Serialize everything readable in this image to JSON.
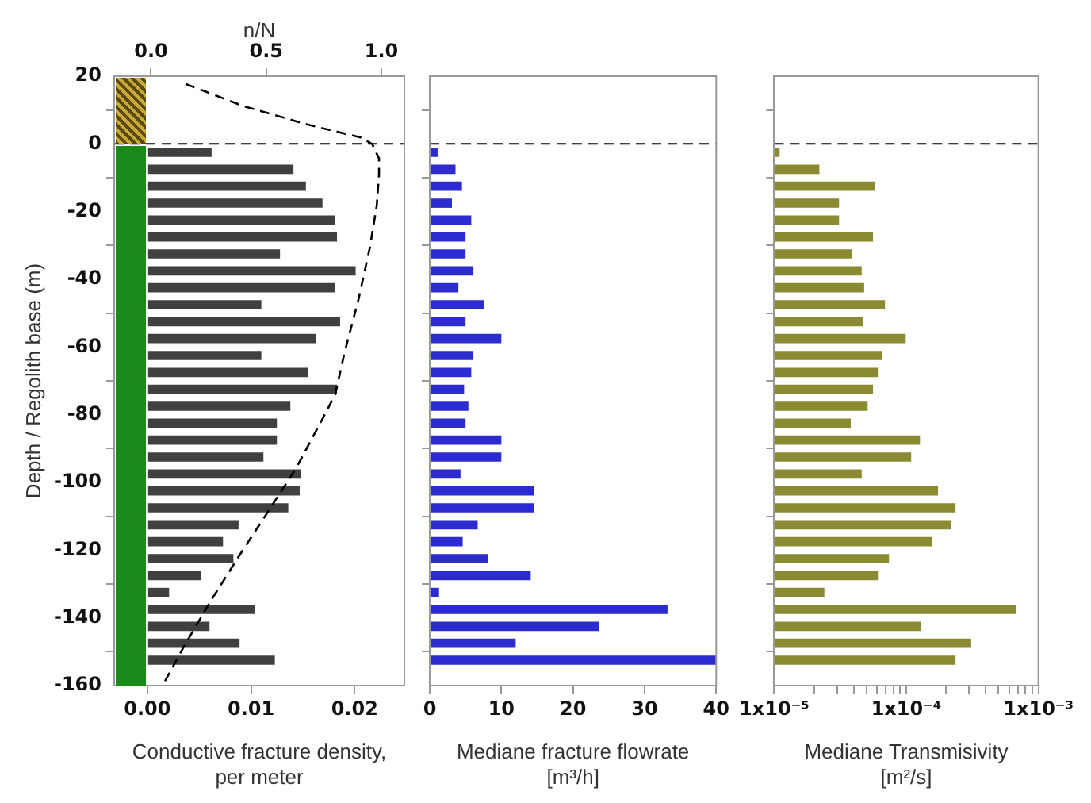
{
  "chart_data": [
    {
      "type": "bar",
      "orientation": "horizontal",
      "ylabel": "Depth / Regolith base (m)",
      "xlabel": "Conductive fracture density,\nper meter",
      "x2label": "n/N",
      "x": [
        -2.5,
        -7.5,
        -12.5,
        -17.5,
        -22.5,
        -27.5,
        -32.5,
        -37.5,
        -42.5,
        -47.5,
        -52.5,
        -57.5,
        -62.5,
        -67.5,
        -72.5,
        -77.5,
        -82.5,
        -87.5,
        -92.5,
        -97.5,
        -102.5,
        -107.5,
        -112.5,
        -117.5,
        -122.5,
        -127.5,
        -132.5,
        -137.5,
        -142.5,
        -147.5,
        -152.5
      ],
      "series": [
        {
          "color": "#404040",
          "values": [
            0.0062,
            0.0141,
            0.0153,
            0.0169,
            0.0181,
            0.0183,
            0.0128,
            0.0201,
            0.0181,
            0.011,
            0.0186,
            0.0163,
            0.011,
            0.0155,
            0.0183,
            0.0138,
            0.0125,
            0.0125,
            0.0112,
            0.0148,
            0.0147,
            0.0136,
            0.0088,
            0.0073,
            0.0083,
            0.0052,
            0.0021,
            0.0104,
            0.006,
            0.0089,
            0.0123
          ]
        },
        {
          "type": "line",
          "axis": "x2",
          "color": "#000000",
          "line_style": "dashed",
          "x": [
            17.7,
            11.2,
            5.7,
            1.9,
            0,
            -4.3,
            -9,
            -18.3,
            -30.7,
            -46.2,
            -61.7,
            -74,
            -80.5,
            -95.8,
            -108.4,
            -120.9,
            -134.9,
            -148.8,
            -160
          ],
          "values": [
            0.15,
            0.4,
            0.68,
            0.91,
            0.96,
            0.99,
            0.99,
            0.98,
            0.95,
            0.9,
            0.84,
            0.8,
            0.75,
            0.63,
            0.51,
            0.39,
            0.26,
            0.14,
            0.05
          ]
        }
      ],
      "xlim": [
        -0.0032,
        0.0248
      ],
      "xticks": [
        {
          "value": 0,
          "label": "0.00"
        },
        0.01,
        0.02
      ],
      "x2lim": [
        -0.16,
        1.1
      ],
      "x2ticks": [
        {
          "value": 0,
          "label": "0.0"
        },
        0.5,
        {
          "value": 1,
          "label": "1.0"
        }
      ],
      "ylim": [
        -160,
        20
      ],
      "yticks": [
        20,
        0,
        -20,
        -40,
        -60,
        -80,
        -100,
        -120,
        -140,
        -160
      ],
      "ref_lines": [
        {
          "axis": "y",
          "value": 0,
          "color": "#000000",
          "line_style": "dashed"
        }
      ]
    },
    {
      "type": "bar",
      "orientation": "horizontal",
      "xlabel": "Mediane fracture flowrate\n[m³/h]",
      "tick_labels": "x",
      "x": [
        -2.5,
        -7.5,
        -12.5,
        -17.5,
        -22.5,
        -27.5,
        -32.5,
        -37.5,
        -42.5,
        -47.5,
        -52.5,
        -57.5,
        -62.5,
        -67.5,
        -72.5,
        -77.5,
        -82.5,
        -87.5,
        -92.5,
        -97.5,
        -102.5,
        -107.5,
        -112.5,
        -117.5,
        -122.5,
        -127.5,
        -132.5,
        -137.5,
        -142.5,
        -147.5,
        -152.5
      ],
      "series": [
        {
          "color": "#2b2bd0",
          "values": [
            1.1,
            3.6,
            4.5,
            3.1,
            5.8,
            5,
            5,
            6.1,
            4,
            7.6,
            5,
            10,
            6.1,
            5.8,
            4.8,
            5.4,
            5,
            10,
            10,
            4.3,
            14.6,
            14.6,
            6.7,
            4.6,
            8.1,
            14.1,
            1.3,
            33.2,
            23.6,
            12,
            40
          ]
        }
      ],
      "xlim": [
        0,
        40
      ],
      "xticks": [
        0,
        10,
        20,
        30,
        40
      ],
      "ylim": [
        -160,
        20
      ],
      "yticks": [
        20,
        0,
        -20,
        -40,
        -60,
        -80,
        -100,
        -120,
        -140,
        -160
      ],
      "ref_lines": [
        {
          "axis": "y",
          "value": 0,
          "color": "#000000",
          "line_style": "dashed"
        }
      ]
    },
    {
      "type": "bar",
      "orientation": "horizontal",
      "log": "x",
      "xlabel": "Mediane Transmisivity\n[m²/s]",
      "tick_labels": "x",
      "x": [
        -2.5,
        -7.5,
        -12.5,
        -17.5,
        -22.5,
        -27.5,
        -32.5,
        -37.5,
        -42.5,
        -47.5,
        -52.5,
        -57.5,
        -62.5,
        -67.5,
        -72.5,
        -77.5,
        -82.5,
        -87.5,
        -92.5,
        -97.5,
        -102.5,
        -107.5,
        -112.5,
        -117.5,
        -122.5,
        -127.5,
        -132.5,
        -137.5,
        -142.5,
        -147.5,
        -152.5
      ],
      "series": [
        {
          "color": "#8a8a32",
          "values": [
            1.1e-05,
            2.2e-05,
            5.8e-05,
            3.1e-05,
            3.1e-05,
            5.6e-05,
            3.9e-05,
            4.6e-05,
            4.8e-05,
            6.9e-05,
            4.7e-05,
            9.9e-05,
            6.6e-05,
            6.1e-05,
            5.6e-05,
            5.1e-05,
            3.8e-05,
            0.000127,
            0.000109,
            4.6e-05,
            0.000174,
            0.000236,
            0.000217,
            0.000157,
            7.4e-05,
            6.1e-05,
            2.4e-05,
            0.00068,
            0.000129,
            0.00031,
            0.000236
          ]
        }
      ],
      "xlim": [
        1e-05,
        0.001
      ],
      "xticks": [
        {
          "value": 1e-05,
          "label": "1x10⁻⁵"
        },
        {
          "value": 2e-05,
          "label": null
        },
        {
          "value": 3e-05,
          "label": null
        },
        {
          "value": 4e-05,
          "label": null
        },
        {
          "value": 5e-05,
          "label": null
        },
        {
          "value": 6e-05,
          "label": null
        },
        {
          "value": 7e-05,
          "label": null
        },
        {
          "value": 8e-05,
          "label": null
        },
        {
          "value": 9e-05,
          "label": null
        },
        {
          "value": 0.0001,
          "label": "1x10⁻⁴"
        },
        {
          "value": 0.0002,
          "label": null
        },
        {
          "value": 0.0003,
          "label": null
        },
        {
          "value": 0.0004,
          "label": null
        },
        {
          "value": 0.0005,
          "label": null
        },
        {
          "value": 0.0006,
          "label": null
        },
        {
          "value": 0.0007,
          "label": null
        },
        {
          "value": 0.0008,
          "label": null
        },
        {
          "value": 0.0009,
          "label": null
        },
        {
          "value": 0.001,
          "label": "1x10⁻³"
        }
      ],
      "ylim": [
        -160,
        20
      ],
      "yticks": [
        20,
        0,
        -20,
        -40,
        -60,
        -80,
        -100,
        -120,
        -140,
        -160
      ],
      "ref_lines": [
        {
          "axis": "y",
          "value": 0,
          "color": "#000000",
          "line_style": "dashed"
        }
      ]
    }
  ]
}
